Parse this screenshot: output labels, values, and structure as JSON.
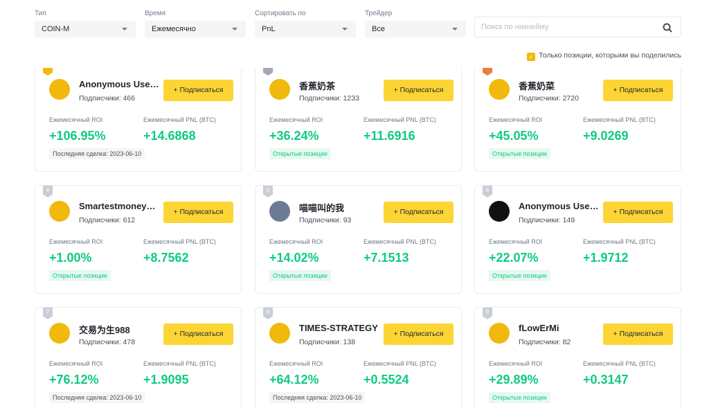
{
  "filters": [
    {
      "label": "Тип",
      "value": "COIN-M"
    },
    {
      "label": "Время",
      "value": "Ежемесячно"
    },
    {
      "label": "Сортировать по",
      "value": "PnL"
    },
    {
      "label": "Трейдер",
      "value": "Все"
    }
  ],
  "search_placeholder": "Поиск по никнейму",
  "checkbox_label": "Только позиции, которыми вы поделились",
  "labels": {
    "subscribe": "+ Подписаться",
    "roi": "Ежемесячный ROI",
    "pnl": "Ежемесячный PNL (BTC)"
  },
  "cards": [
    {
      "name": "Anonymous User-...",
      "subscribers": "Подписчики: 466",
      "roi": "+106.95%",
      "pnl": "+14.6868",
      "last_trade": "Последняя сделка: 2023-06-10"
    },
    {
      "name": "香蕉奶茶",
      "subscribers": "Подписчики: 1233",
      "roi": "+36.24%",
      "pnl": "+11.6916",
      "open_positions": "Открытые позиции"
    },
    {
      "name": "香蕉奶菜",
      "subscribers": "Подписчики: 2720",
      "roi": "+45.05%",
      "pnl": "+9.0269",
      "open_positions": "Открытые позиции"
    },
    {
      "rank": 4,
      "name": "Smartestmoneydo...",
      "subscribers": "Подписчики: 612",
      "roi": "+1.00%",
      "pnl": "+8.7562",
      "open_positions": "Открытые позиции"
    },
    {
      "rank": 5,
      "name": "喵喵叫的我",
      "subscribers": "Подписчики: 93",
      "roi": "+14.02%",
      "pnl": "+7.1513",
      "open_positions": "Открытые позиции"
    },
    {
      "rank": 6,
      "name": "Anonymous User-...",
      "subscribers": "Подписчики: 149",
      "roi": "+22.07%",
      "pnl": "+1.9712",
      "open_positions": "Открытые позиции"
    },
    {
      "rank": 7,
      "name": "交易为生988",
      "subscribers": "Подписчики: 478",
      "roi": "+76.12%",
      "pnl": "+1.9095",
      "last_trade": "Последняя сделка: 2023-06-10"
    },
    {
      "rank": 8,
      "name": "TIMES-STRATEGY",
      "subscribers": "Подписчики: 138",
      "roi": "+64.12%",
      "pnl": "+0.5524",
      "last_trade": "Последняя сделка: 2023-06-10"
    },
    {
      "rank": 9,
      "name": "fLowErMi",
      "subscribers": "Подписчики: 82",
      "roi": "+29.89%",
      "pnl": "+0.3147",
      "open_positions": "Открытые позиции"
    }
  ]
}
